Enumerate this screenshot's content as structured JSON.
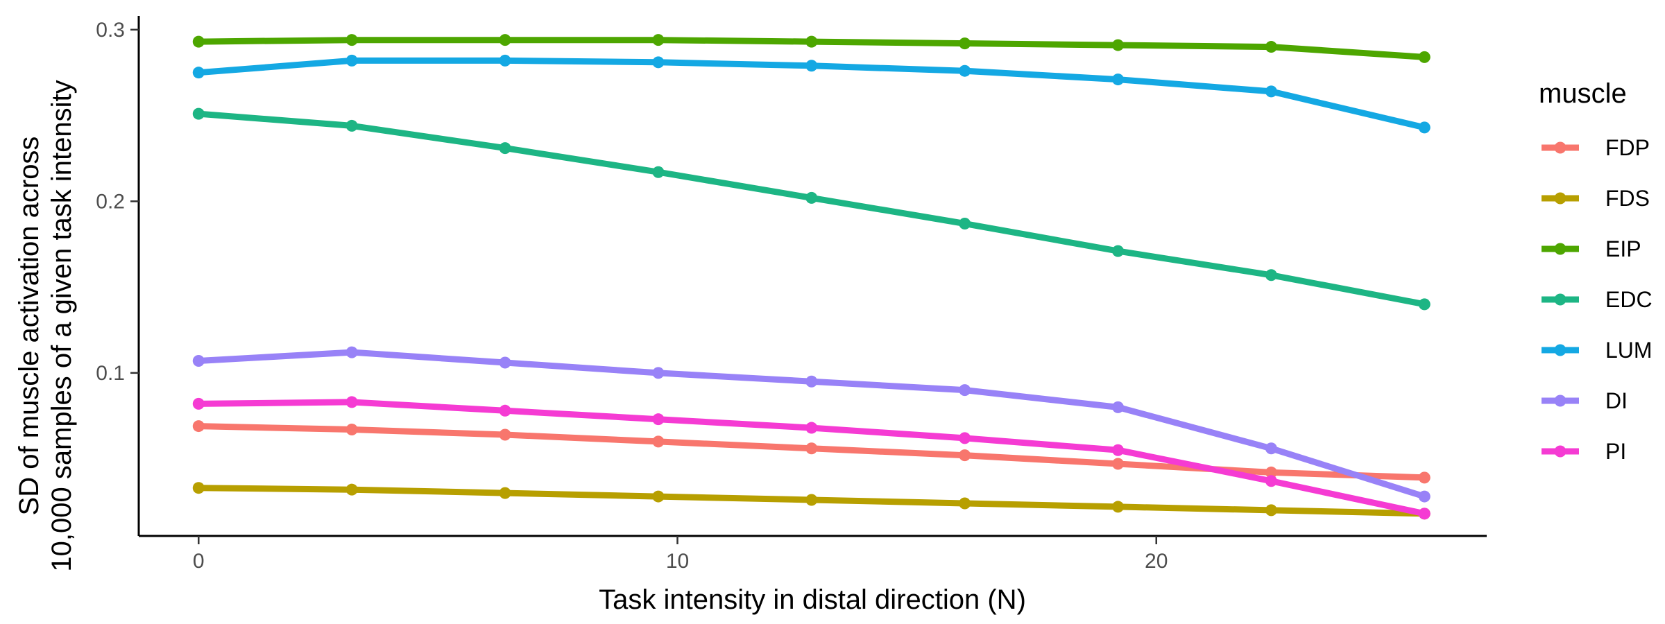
{
  "chart_data": {
    "type": "line",
    "title": "",
    "xlabel": "Task intensity in distal direction (N)",
    "ylabel_lines": [
      "SD of muscle activation across",
      "10,000 samples of a given task intensity"
    ],
    "x": [
      0,
      3.2,
      6.4,
      9.6,
      12.8,
      16.0,
      19.2,
      22.4,
      25.6
    ],
    "xlim": [
      -1.25,
      26.9
    ],
    "ylim": [
      0.005,
      0.308
    ],
    "x_ticks": [
      0,
      10,
      20
    ],
    "x_tick_labels": [
      "0",
      "10",
      "20"
    ],
    "y_ticks": [
      0.1,
      0.2,
      0.3
    ],
    "y_tick_labels": [
      "0.1",
      "0.2",
      "0.3"
    ],
    "grid": false,
    "legend": {
      "title": "muscle",
      "position": "right"
    },
    "series": [
      {
        "name": "FDP",
        "color": "#F8766D",
        "values": [
          0.069,
          0.067,
          0.064,
          0.06,
          0.056,
          0.052,
          0.047,
          0.042,
          0.039
        ]
      },
      {
        "name": "FDS",
        "color": "#B79F00",
        "values": [
          0.033,
          0.032,
          0.03,
          0.028,
          0.026,
          0.024,
          0.022,
          0.02,
          0.018
        ]
      },
      {
        "name": "EIP",
        "color": "#4DA600",
        "values": [
          0.293,
          0.294,
          0.294,
          0.294,
          0.293,
          0.292,
          0.291,
          0.29,
          0.284
        ]
      },
      {
        "name": "EDC",
        "color": "#1DB584",
        "values": [
          0.251,
          0.244,
          0.231,
          0.217,
          0.202,
          0.187,
          0.171,
          0.157,
          0.14
        ]
      },
      {
        "name": "LUM",
        "color": "#14A8E3",
        "values": [
          0.275,
          0.282,
          0.282,
          0.281,
          0.279,
          0.276,
          0.271,
          0.264,
          0.243
        ]
      },
      {
        "name": "DI",
        "color": "#9882F7",
        "values": [
          0.107,
          0.112,
          0.106,
          0.1,
          0.095,
          0.09,
          0.08,
          0.056,
          0.028
        ]
      },
      {
        "name": "PI",
        "color": "#F53BD3",
        "values": [
          0.082,
          0.083,
          0.078,
          0.073,
          0.068,
          0.062,
          0.055,
          0.037,
          0.018
        ]
      }
    ]
  }
}
